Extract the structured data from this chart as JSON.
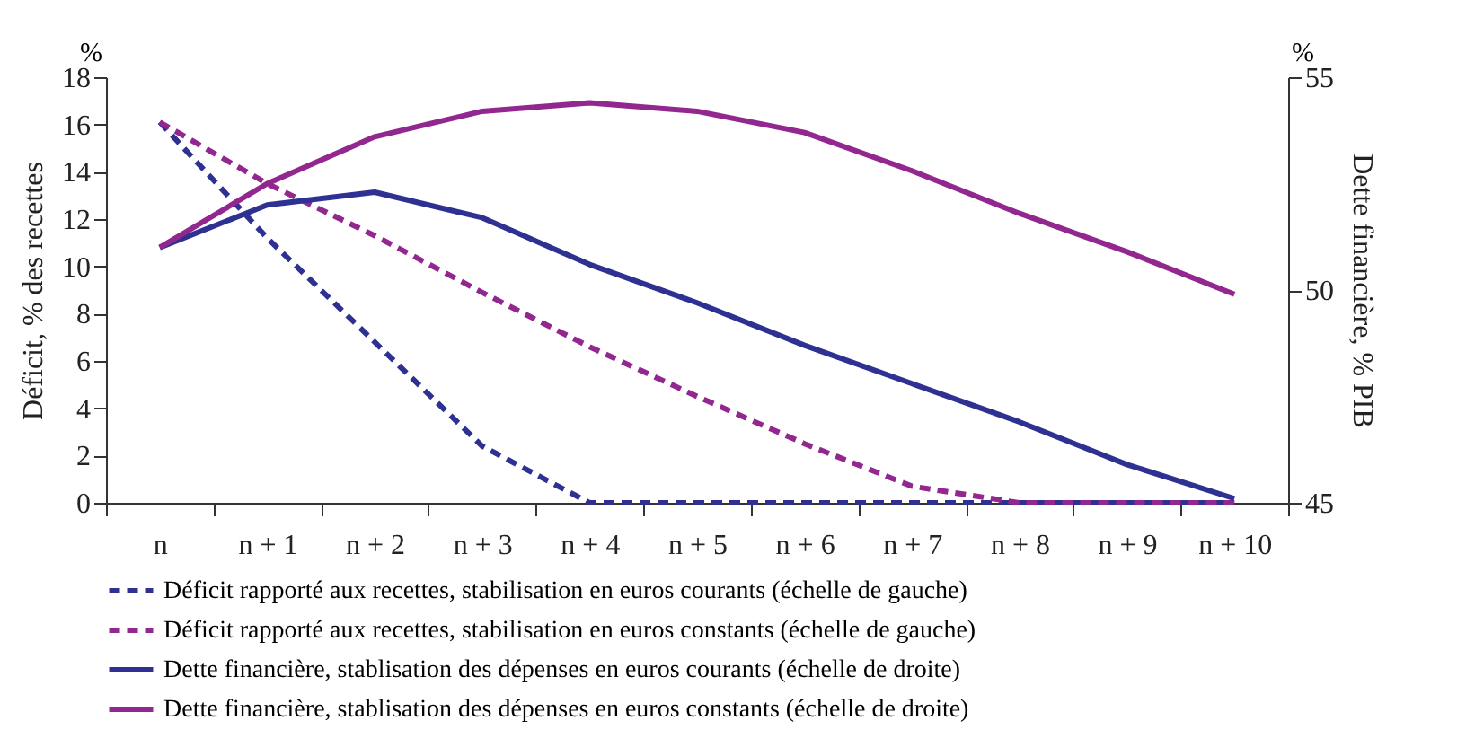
{
  "chart_data": {
    "type": "line",
    "ylabel": "Déficit, % des recettes",
    "y2label": "Dette financière, % PIB",
    "annotations": [
      "%",
      "%"
    ],
    "categories": [
      "n",
      "n + 1",
      "n + 2",
      "n + 3",
      "n + 4",
      "n + 5",
      "n + 6",
      "n + 7",
      "n + 8",
      "n + 9",
      "n + 10"
    ],
    "ylim": [
      0,
      18
    ],
    "yticks": [
      0,
      2,
      4,
      6,
      8,
      10,
      12,
      14,
      16,
      18
    ],
    "y2lim": [
      45,
      55
    ],
    "y2ticks": [
      45,
      50,
      55
    ],
    "grid": false,
    "legend": "bottom",
    "series": [
      {
        "name": "Déficit rapporté aux recettes, stabilisation en euros courants (échelle de gauche)",
        "color": "#2e3192",
        "line_style": "dashed",
        "values": [
          16.1,
          11.2,
          6.8,
          2.4,
          0,
          0,
          0,
          0,
          0,
          0,
          0
        ]
      },
      {
        "name": "Déficit rapporté aux recettes, stabilisation en euros constants (échelle de gauche)",
        "color": "#92278f",
        "line_style": "dashed",
        "values": [
          16.1,
          13.5,
          11.3,
          8.9,
          6.6,
          4.5,
          2.5,
          0.7,
          0,
          0,
          0
        ]
      },
      {
        "name": "Dette financière, stablisation des dépenses en euros courants (échelle de droite)",
        "color": "#2e3192",
        "line_style": "solid",
        "axis": "y2",
        "values": [
          51.0,
          52.0,
          52.3,
          51.7,
          50.6,
          49.7,
          48.7,
          47.8,
          46.9,
          45.9,
          45.1
        ]
      },
      {
        "name": "Dette financière, stablisation des dépenses en euros constants (échelle de droite)",
        "color": "#92278f",
        "line_style": "solid",
        "axis": "y2",
        "values": [
          51.0,
          52.5,
          53.6,
          54.2,
          54.4,
          54.2,
          53.7,
          52.8,
          51.8,
          50.9,
          49.9
        ]
      }
    ]
  }
}
